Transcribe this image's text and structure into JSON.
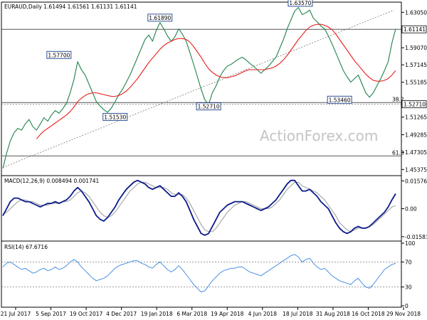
{
  "chart_data": [
    {
      "type": "line",
      "title": "EURAUD,Daily  1.61494 1.61561 1.61131 1.61141",
      "x_ticks": [
        "21 Jul 2017",
        "5 Sep 2017",
        "19 Oct 2017",
        "4 Dec 2017",
        "19 Jan 2018",
        "6 Mar 2018",
        "19 Apr 2018",
        "4 Jun 2018",
        "18 Jul 2018",
        "31 Aug 2018",
        "16 Oct 2018",
        "29 Nov 2018"
      ],
      "y_ticks": [
        "1.63050",
        "1.61141",
        "1.59070",
        "1.57145",
        "1.55185",
        "1.52710",
        "1.51265",
        "1.49285",
        "1.47305",
        "1.45375"
      ],
      "ylim": [
        1.45,
        1.638
      ],
      "x": [
        0,
        4,
        8,
        12,
        16,
        20,
        24,
        28,
        32,
        36,
        40,
        44,
        48,
        52,
        56,
        60,
        64,
        68,
        72,
        76,
        80,
        84,
        88,
        92,
        96,
        100,
        104,
        108,
        112,
        116,
        120,
        124,
        128,
        132,
        136,
        140,
        144,
        148,
        152,
        156,
        160,
        164,
        168,
        172,
        176,
        180,
        184,
        188,
        192,
        196,
        200,
        204,
        208,
        212,
        216,
        220,
        224,
        228,
        232,
        236,
        240,
        244,
        248,
        252,
        256,
        260,
        264,
        268,
        272,
        276,
        280,
        284,
        288,
        292,
        296,
        300,
        304,
        308,
        312,
        316,
        320,
        324,
        328,
        332,
        336,
        340,
        344,
        348,
        352,
        356,
        360,
        364,
        368,
        372,
        376,
        380,
        384,
        388,
        392,
        396,
        400,
        404,
        408,
        412,
        416,
        420
      ],
      "series": [
        {
          "values": [
            1.455,
            1.472,
            1.486,
            1.495,
            1.5,
            1.498,
            1.505,
            1.51,
            1.502,
            1.498,
            1.505,
            1.512,
            1.508,
            1.515,
            1.52,
            1.517,
            1.522,
            1.528,
            1.54,
            1.555,
            1.575,
            1.566,
            1.56,
            1.55,
            1.54,
            1.53,
            1.525,
            1.521,
            1.518,
            1.523,
            1.53,
            1.538,
            1.544,
            1.552,
            1.56,
            1.57,
            1.58,
            1.59,
            1.6,
            1.605,
            1.598,
            1.61,
            1.619,
            1.612,
            1.604,
            1.598,
            1.603,
            1.612,
            1.606,
            1.598,
            1.585,
            1.572,
            1.558,
            1.544,
            1.532,
            1.527,
            1.54,
            1.548,
            1.558,
            1.565,
            1.57,
            1.572,
            1.575,
            1.578,
            1.58,
            1.577,
            1.573,
            1.57,
            1.566,
            1.562,
            1.566,
            1.57,
            1.575,
            1.58,
            1.59,
            1.6,
            1.612,
            1.622,
            1.632,
            1.636,
            1.628,
            1.63,
            1.633,
            1.624,
            1.62,
            1.615,
            1.612,
            1.604,
            1.595,
            1.585,
            1.575,
            1.565,
            1.558,
            1.552,
            1.556,
            1.56,
            1.55,
            1.54,
            1.535,
            1.54,
            1.548,
            1.556,
            1.565,
            1.575,
            1.596,
            1.612
          ]
        },
        {
          "values": [
            null,
            null,
            null,
            null,
            null,
            null,
            null,
            null,
            null,
            1.488,
            1.493,
            1.497,
            1.5,
            1.503,
            1.506,
            1.509,
            1.512,
            1.515,
            1.519,
            1.524,
            1.53,
            1.534,
            1.537,
            1.539,
            1.54,
            1.54,
            1.539,
            1.538,
            1.537,
            1.536,
            1.536,
            1.537,
            1.539,
            1.542,
            1.546,
            1.551,
            1.556,
            1.562,
            1.568,
            1.574,
            1.579,
            1.584,
            1.589,
            1.593,
            1.596,
            1.598,
            1.6,
            1.601,
            1.601,
            1.6,
            1.597,
            1.592,
            1.586,
            1.58,
            1.573,
            1.567,
            1.563,
            1.56,
            1.558,
            1.557,
            1.557,
            1.558,
            1.559,
            1.561,
            1.563,
            1.565,
            1.566,
            1.566,
            1.566,
            1.566,
            1.566,
            1.567,
            1.568,
            1.57,
            1.573,
            1.577,
            1.582,
            1.588,
            1.594,
            1.6,
            1.605,
            1.61,
            1.614,
            1.616,
            1.617,
            1.617,
            1.616,
            1.614,
            1.611,
            1.606,
            1.6,
            1.594,
            1.588,
            1.582,
            1.576,
            1.571,
            1.566,
            1.561,
            1.557,
            1.554,
            1.553,
            1.553,
            1.554,
            1.556,
            1.56,
            1.565
          ]
        }
      ],
      "hlines": [
        {
          "y": 1.61141,
          "style": "solid"
        },
        {
          "y": 1.5271,
          "style": "dotted"
        },
        {
          "y": 1.529,
          "style": "solid",
          "label": "38.2"
        },
        {
          "y": 1.469,
          "style": "solid",
          "label": "61.8"
        }
      ],
      "trendline": {
        "x1": 0,
        "y1": 1.456,
        "x2": 418,
        "y2": 1.633
      },
      "callouts": [
        {
          "label": "1.57700",
          "x": 60,
          "y": 1.577
        },
        {
          "label": "1.51530",
          "x": 120,
          "y": 1.5153
        },
        {
          "label": "1.61890",
          "x": 168,
          "y": 1.6189
        },
        {
          "label": "1.52710",
          "x": 220,
          "y": 1.5271
        },
        {
          "label": "1.63570",
          "x": 318,
          "y": 1.6357
        },
        {
          "label": "1.53460",
          "x": 360,
          "y": 1.5346
        }
      ],
      "current_price_label": "1.61141",
      "dotted_price_label": "1.52710",
      "colors": {
        "price": "#2e8b57",
        "ma": "#e8201e",
        "trend": "#555555",
        "callout": "#1a3d8a"
      },
      "watermark": "ActionForex.com",
      "grid": false
    },
    {
      "type": "line",
      "title": "MACD(12,26,9) 0.008494 0.001741",
      "y_ticks": [
        "0.015762",
        "0.00",
        "-0.015834"
      ],
      "ylim": [
        -0.0175,
        0.0175
      ],
      "series": [
        {
          "values": [
            -0.004,
            0.0,
            0.004,
            0.006,
            0.006,
            0.005,
            0.004,
            0.004,
            0.003,
            0.002,
            0.001,
            0.002,
            0.003,
            0.003,
            0.004,
            0.003,
            0.004,
            0.005,
            0.007,
            0.01,
            0.012,
            0.01,
            0.007,
            0.004,
            0.0,
            -0.004,
            -0.006,
            -0.007,
            -0.005,
            -0.002,
            0.001,
            0.005,
            0.008,
            0.011,
            0.013,
            0.015,
            0.016,
            0.015,
            0.014,
            0.012,
            0.011,
            0.012,
            0.013,
            0.011,
            0.009,
            0.007,
            0.007,
            0.009,
            0.007,
            0.004,
            -0.001,
            -0.006,
            -0.01,
            -0.014,
            -0.015,
            -0.014,
            -0.01,
            -0.006,
            -0.002,
            0.0,
            0.002,
            0.003,
            0.004,
            0.004,
            0.004,
            0.003,
            0.002,
            0.001,
            0.0,
            -0.001,
            0.0,
            0.001,
            0.003,
            0.005,
            0.008,
            0.011,
            0.014,
            0.016,
            0.016,
            0.013,
            0.01,
            0.01,
            0.011,
            0.009,
            0.007,
            0.004,
            0.002,
            0.0,
            -0.004,
            -0.008,
            -0.011,
            -0.013,
            -0.014,
            -0.013,
            -0.011,
            -0.01,
            -0.011,
            -0.011,
            -0.01,
            -0.008,
            -0.006,
            -0.004,
            -0.002,
            0.001,
            0.005,
            0.0085
          ]
        },
        {
          "values": [
            -0.003,
            -0.002,
            0.0,
            0.002,
            0.004,
            0.005,
            0.005,
            0.004,
            0.004,
            0.003,
            0.002,
            0.002,
            0.002,
            0.003,
            0.003,
            0.003,
            0.004,
            0.004,
            0.005,
            0.007,
            0.009,
            0.01,
            0.009,
            0.007,
            0.004,
            0.001,
            -0.002,
            -0.004,
            -0.005,
            -0.004,
            -0.002,
            0.001,
            0.004,
            0.007,
            0.01,
            0.012,
            0.014,
            0.015,
            0.015,
            0.014,
            0.013,
            0.012,
            0.012,
            0.012,
            0.011,
            0.009,
            0.008,
            0.008,
            0.008,
            0.006,
            0.003,
            -0.001,
            -0.005,
            -0.009,
            -0.012,
            -0.013,
            -0.013,
            -0.011,
            -0.008,
            -0.005,
            -0.002,
            0.0,
            0.002,
            0.003,
            0.004,
            0.004,
            0.003,
            0.002,
            0.001,
            0.0,
            0.0,
            0.0,
            0.001,
            0.003,
            0.005,
            0.008,
            0.011,
            0.013,
            0.015,
            0.015,
            0.013,
            0.012,
            0.011,
            0.01,
            0.009,
            0.007,
            0.005,
            0.002,
            -0.001,
            -0.004,
            -0.008,
            -0.01,
            -0.012,
            -0.013,
            -0.012,
            -0.011,
            -0.011,
            -0.011,
            -0.01,
            -0.009,
            -0.007,
            -0.005,
            -0.003,
            -0.001,
            0.001,
            0.0017
          ]
        }
      ],
      "colors": {
        "macd": "#0a1a8a",
        "signal": "#9a9a9a"
      }
    },
    {
      "type": "line",
      "title": "RSI(14) 67.6716",
      "y_ticks": [
        "100",
        "70",
        "30",
        "0"
      ],
      "ylim": [
        0,
        100
      ],
      "levels": [
        70,
        30
      ],
      "series": [
        {
          "values": [
            62,
            68,
            70,
            66,
            62,
            58,
            60,
            56,
            52,
            54,
            58,
            60,
            56,
            58,
            62,
            58,
            60,
            64,
            70,
            74,
            70,
            62,
            56,
            50,
            44,
            40,
            42,
            44,
            48,
            54,
            60,
            64,
            66,
            68,
            70,
            72,
            72,
            68,
            66,
            62,
            60,
            66,
            70,
            64,
            58,
            54,
            58,
            64,
            58,
            50,
            42,
            34,
            28,
            22,
            24,
            32,
            40,
            46,
            52,
            56,
            58,
            60,
            60,
            62,
            62,
            58,
            54,
            52,
            50,
            48,
            52,
            56,
            60,
            64,
            68,
            72,
            76,
            80,
            82,
            78,
            70,
            74,
            76,
            68,
            62,
            58,
            60,
            54,
            48,
            44,
            40,
            38,
            36,
            34,
            40,
            44,
            36,
            30,
            28,
            34,
            42,
            50,
            58,
            62,
            66,
            67.7
          ]
        }
      ],
      "colors": {
        "rsi": "#4a90e2"
      }
    }
  ]
}
